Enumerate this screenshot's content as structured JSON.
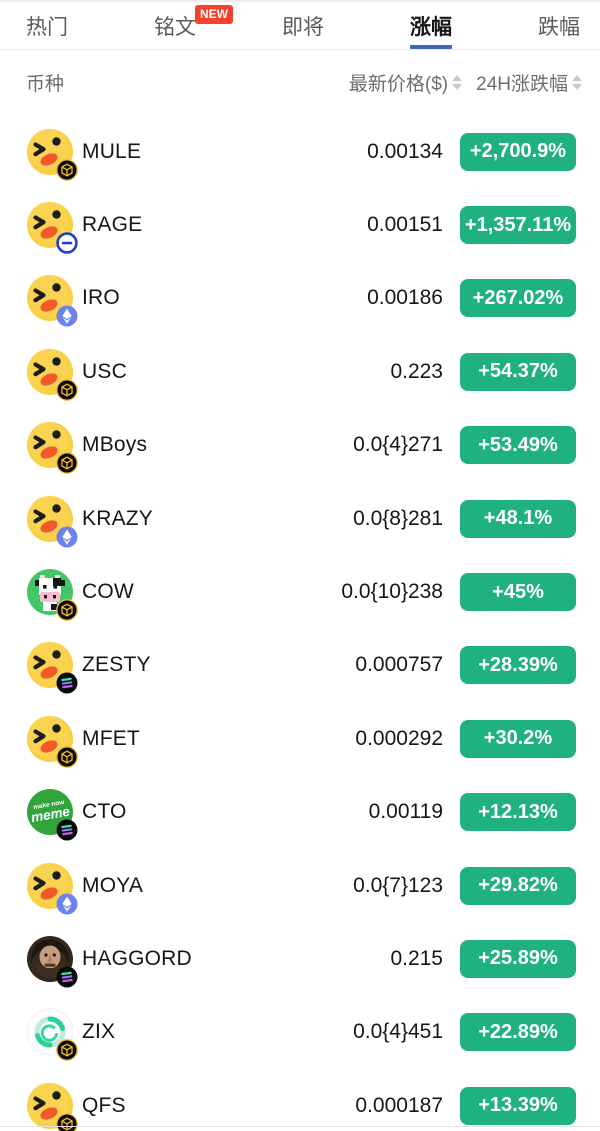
{
  "colors": {
    "change_badge_green": "#20b182",
    "active_tab_underline_blue": "#3d66bd",
    "new_badge_red": "#f6412d",
    "primary_text": "#161616",
    "secondary_text": "#6e6e6e"
  },
  "tabs": [
    {
      "id": "hot",
      "label": "热门",
      "active": false
    },
    {
      "id": "inscriptions",
      "label": "铭文",
      "active": false,
      "badge": "NEW"
    },
    {
      "id": "upcoming",
      "label": "即将",
      "active": false
    },
    {
      "id": "gainers",
      "label": "涨幅",
      "active": true
    },
    {
      "id": "losers",
      "label": "跌幅",
      "active": false
    }
  ],
  "list_header": {
    "coin": "币种",
    "price": "最新价格($)",
    "change": "24H涨跌幅"
  },
  "rows": [
    {
      "symbol": "MULE",
      "price": "0.00134",
      "change": "+2,700.9%",
      "icon": "wink-emoji-icon",
      "chain": "bnb-chain-badge-icon"
    },
    {
      "symbol": "RAGE",
      "price": "0.00151",
      "change": "+1,357.11%",
      "icon": "wink-emoji-icon",
      "chain": "minus-circle-badge-icon"
    },
    {
      "symbol": "IRO",
      "price": "0.00186",
      "change": "+267.02%",
      "icon": "wink-emoji-icon",
      "chain": "eth-chain-badge-icon"
    },
    {
      "symbol": "USC",
      "price": "0.223",
      "change": "+54.37%",
      "icon": "wink-emoji-icon",
      "chain": "bnb-chain-badge-icon"
    },
    {
      "symbol": "MBoys",
      "price": "0.0{4}271",
      "change": "+53.49%",
      "icon": "wink-emoji-icon",
      "chain": "bnb-chain-badge-icon"
    },
    {
      "symbol": "KRAZY",
      "price": "0.0{8}281",
      "change": "+48.1%",
      "icon": "wink-emoji-icon",
      "chain": "eth-chain-badge-icon"
    },
    {
      "symbol": "COW",
      "price": "0.0{10}238",
      "change": "+45%",
      "icon": "pixel-cow-icon",
      "chain": "bnb-chain-badge-icon"
    },
    {
      "symbol": "ZESTY",
      "price": "0.000757",
      "change": "+28.39%",
      "icon": "wink-emoji-icon",
      "chain": "sol-chain-badge-icon"
    },
    {
      "symbol": "MFET",
      "price": "0.000292",
      "change": "+30.2%",
      "icon": "wink-emoji-icon",
      "chain": "bnb-chain-badge-icon"
    },
    {
      "symbol": "CTO",
      "price": "0.00119",
      "change": "+12.13%",
      "icon": "meme-coin-icon",
      "chain": "sol-chain-badge-icon",
      "icon_text_top": "make now",
      "icon_text": "meme"
    },
    {
      "symbol": "MOYA",
      "price": "0.0{7}123",
      "change": "+29.82%",
      "icon": "wink-emoji-icon",
      "chain": "eth-chain-badge-icon"
    },
    {
      "symbol": "HAGGORD",
      "price": "0.215",
      "change": "+25.89%",
      "icon": "bearded-man-icon",
      "chain": "sol-chain-badge-icon"
    },
    {
      "symbol": "ZIX",
      "price": "0.0{4}451",
      "change": "+22.89%",
      "icon": "teal-rings-icon",
      "chain": "bnb-chain-badge-icon"
    },
    {
      "symbol": "QFS",
      "price": "0.000187",
      "change": "+13.39%",
      "icon": "wink-emoji-icon",
      "chain": "bnb-chain-badge-icon"
    }
  ]
}
